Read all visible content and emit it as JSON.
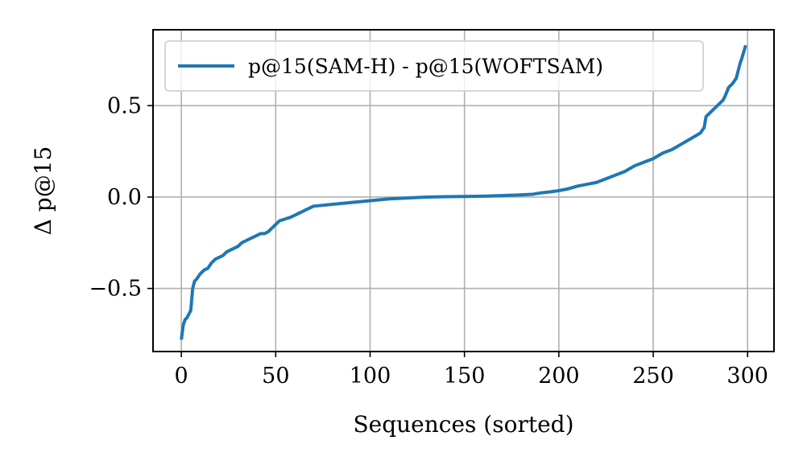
{
  "chart_data": {
    "type": "line",
    "title": "",
    "xlabel": "Sequences (sorted)",
    "ylabel": "Δ p@15",
    "xlim": [
      -15,
      314
    ],
    "ylim": [
      -0.845,
      0.915
    ],
    "xticks": [
      0,
      50,
      100,
      150,
      200,
      250,
      300
    ],
    "xtick_labels": [
      "0",
      "50",
      "100",
      "150",
      "200",
      "250",
      "300"
    ],
    "yticks": [
      -0.5,
      0.0,
      0.5
    ],
    "ytick_labels": [
      "−0.5",
      "0.0",
      "0.5"
    ],
    "grid": true,
    "legend_position": "upper-left",
    "series": [
      {
        "name": "p@15(SAM-H) - p@15(WOFTSAM)",
        "color": "#1f77b4",
        "x": [
          0,
          1,
          2,
          3,
          4,
          5,
          6,
          7,
          8,
          10,
          12,
          14,
          16,
          18,
          20,
          22,
          24,
          26,
          28,
          30,
          32,
          34,
          36,
          38,
          40,
          42,
          44,
          46,
          48,
          50,
          52,
          55,
          58,
          60,
          62,
          64,
          66,
          68,
          70,
          75,
          80,
          85,
          90,
          95,
          100,
          110,
          120,
          130,
          140,
          150,
          160,
          170,
          180,
          186,
          190,
          195,
          200,
          205,
          210,
          215,
          220,
          225,
          230,
          235,
          240,
          245,
          250,
          255,
          260,
          265,
          270,
          275,
          277,
          278,
          280,
          282,
          285,
          287,
          288,
          290,
          292,
          294,
          296,
          297,
          299
        ],
        "y": [
          -0.78,
          -0.7,
          -0.67,
          -0.66,
          -0.64,
          -0.62,
          -0.5,
          -0.46,
          -0.45,
          -0.42,
          -0.4,
          -0.39,
          -0.36,
          -0.34,
          -0.33,
          -0.32,
          -0.3,
          -0.29,
          -0.28,
          -0.27,
          -0.25,
          -0.24,
          -0.23,
          -0.22,
          -0.21,
          -0.2,
          -0.2,
          -0.19,
          -0.17,
          -0.15,
          -0.13,
          -0.12,
          -0.11,
          -0.1,
          -0.09,
          -0.08,
          -0.07,
          -0.06,
          -0.05,
          -0.045,
          -0.04,
          -0.035,
          -0.03,
          -0.025,
          -0.02,
          -0.01,
          -0.005,
          0.0,
          0.002,
          0.003,
          0.005,
          0.008,
          0.012,
          0.015,
          0.022,
          0.028,
          0.035,
          0.045,
          0.06,
          0.07,
          0.08,
          0.1,
          0.12,
          0.14,
          0.17,
          0.19,
          0.21,
          0.24,
          0.26,
          0.29,
          0.32,
          0.35,
          0.38,
          0.44,
          0.46,
          0.48,
          0.51,
          0.53,
          0.55,
          0.6,
          0.62,
          0.65,
          0.73,
          0.76,
          0.83
        ]
      }
    ]
  }
}
